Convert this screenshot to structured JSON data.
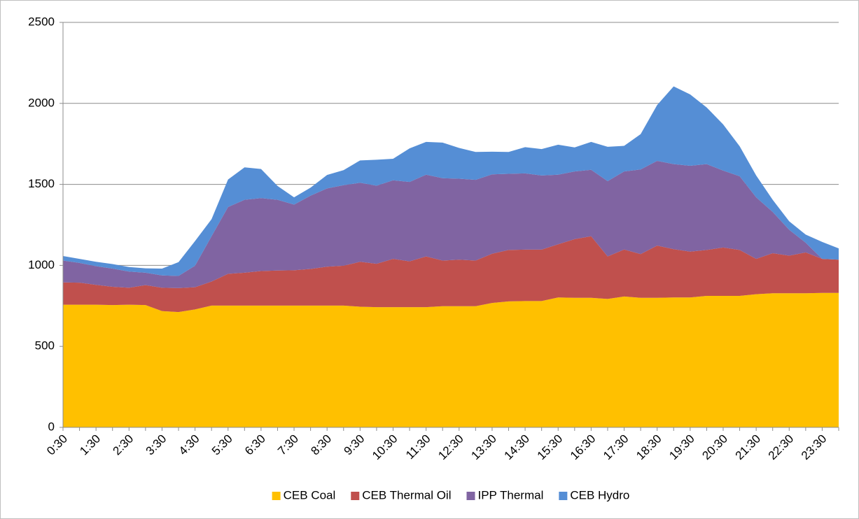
{
  "chart_data": {
    "type": "stacked-area",
    "categories": [
      "0:30",
      null,
      "1:30",
      null,
      "2:30",
      null,
      "3:30",
      null,
      "4:30",
      null,
      "5:30",
      null,
      "6:30",
      null,
      "7:30",
      null,
      "8:30",
      null,
      "9:30",
      null,
      "10:30",
      null,
      "11:30",
      null,
      "12:30",
      null,
      "13:30",
      null,
      "14:30",
      null,
      "15:30",
      null,
      "16:30",
      null,
      "17:30",
      null,
      "18:30",
      null,
      "19:30",
      null,
      "20:30",
      null,
      "21:30",
      null,
      "22:30",
      null,
      "23:30",
      null
    ],
    "series": [
      {
        "name": "CEB Coal",
        "color": "#ffc000",
        "values": [
          757,
          757,
          757,
          755,
          757,
          755,
          718,
          712,
          728,
          752,
          752,
          752,
          752,
          752,
          752,
          752,
          752,
          752,
          745,
          742,
          742,
          742,
          742,
          748,
          748,
          748,
          768,
          778,
          780,
          780,
          802,
          800,
          800,
          793,
          808,
          800,
          800,
          802,
          802,
          812,
          812,
          812,
          822,
          828,
          828,
          828,
          830,
          830
        ]
      },
      {
        "name": "CEB Thermal Oil",
        "color": "#c0504d",
        "values": [
          138,
          136,
          123,
          113,
          105,
          123,
          144,
          148,
          137,
          148,
          196,
          203,
          213,
          216,
          218,
          226,
          240,
          246,
          277,
          268,
          298,
          283,
          313,
          282,
          287,
          282,
          304,
          317,
          317,
          317,
          328,
          362,
          380,
          262,
          290,
          270,
          322,
          298,
          283,
          283,
          298,
          283,
          218,
          247,
          232,
          252,
          210,
          205
        ]
      },
      {
        "name": "IPP Thermal",
        "color": "#8064a2",
        "values": [
          135,
          122,
          115,
          112,
          100,
          77,
          76,
          75,
          133,
          280,
          412,
          450,
          450,
          437,
          405,
          452,
          483,
          497,
          488,
          482,
          485,
          490,
          505,
          508,
          500,
          498,
          490,
          470,
          471,
          458,
          430,
          418,
          410,
          465,
          482,
          522,
          523,
          525,
          530,
          530,
          475,
          455,
          380,
          255,
          160,
          60,
          0,
          0
        ]
      },
      {
        "name": "CEB Hydro",
        "color": "#558ed5",
        "values": [
          28,
          25,
          27,
          28,
          28,
          27,
          42,
          85,
          152,
          105,
          170,
          200,
          180,
          85,
          45,
          50,
          83,
          93,
          138,
          160,
          133,
          207,
          202,
          220,
          190,
          172,
          140,
          135,
          162,
          163,
          185,
          148,
          172,
          212,
          158,
          218,
          345,
          480,
          440,
          350,
          285,
          185,
          135,
          75,
          52,
          50,
          105,
          70
        ]
      }
    ],
    "ylim": [
      0,
      2500
    ],
    "yticks": [
      0,
      500,
      1000,
      1500,
      2000,
      2500
    ],
    "grid": true,
    "legend": "bottom"
  }
}
